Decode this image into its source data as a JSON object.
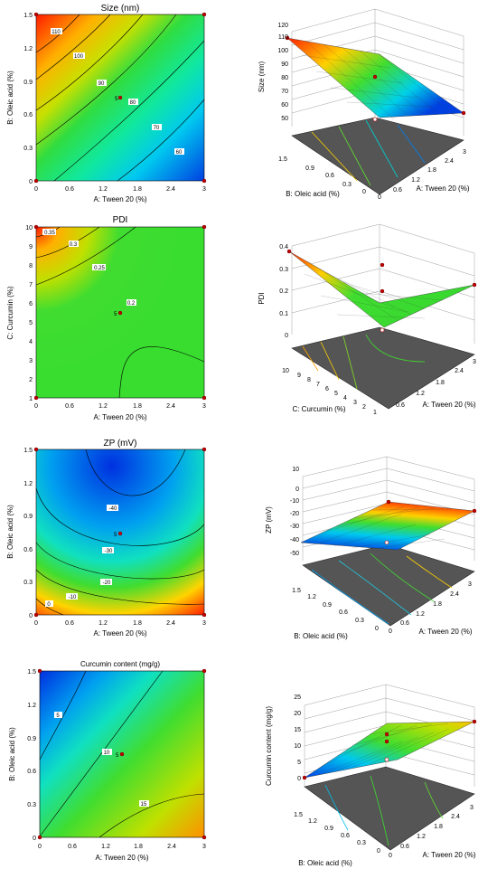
{
  "chart_data": [
    {
      "type": "contour",
      "title": "Size (nm)",
      "xlabel": "A: Tween 20 (%)",
      "ylabel": "B: Oleic acid (%)",
      "xticks": [
        "0",
        "0.6",
        "1.2",
        "1.8",
        "2.4",
        "3"
      ],
      "yticks": [
        "0",
        "0.3",
        "0.6",
        "0.9",
        "1.2",
        "1.5"
      ],
      "xlim": [
        0,
        3
      ],
      "ylim": [
        0,
        1.5
      ],
      "contour_labels": [
        "110",
        "100",
        "90",
        "80",
        "70",
        "60"
      ],
      "center_point_label": "5",
      "colors": [
        "#ff2000",
        "#ffd400",
        "#40dd30",
        "#00e0e8",
        "#0070f0"
      ]
    },
    {
      "type": "surface",
      "zlabel": "Size (nm)",
      "xlabel": "A: Tween 20 (%)",
      "ylabel": "B: Oleic acid (%)",
      "zticks": [
        "50",
        "60",
        "70",
        "80",
        "90",
        "100",
        "110",
        "120"
      ],
      "xticks": [
        "0",
        "0.6",
        "1.2",
        "1.8",
        "2.4",
        "3"
      ],
      "yticks": [
        "0",
        "0.3",
        "0.6",
        "0.9",
        "1.2",
        "1.5"
      ],
      "corners": {
        "x0y0": 90,
        "x3y0": 68,
        "x0y15": 112,
        "x3y15": 54
      }
    },
    {
      "type": "contour",
      "title": "PDI",
      "xlabel": "A: Tween 20 (%)",
      "ylabel": "C: Curcumin (%)",
      "xticks": [
        "0",
        "0.6",
        "1.2",
        "1.8",
        "2.4",
        "3"
      ],
      "yticks": [
        "1",
        "2",
        "3",
        "4",
        "5",
        "6",
        "7",
        "8",
        "9",
        "10"
      ],
      "xlim": [
        0,
        3
      ],
      "ylim": [
        1,
        10
      ],
      "contour_labels": [
        "0.35",
        "0.3",
        "0.25",
        "0.2"
      ],
      "center_point_label": "5",
      "colors": [
        "#ff2000",
        "#ffd400",
        "#40dd30"
      ]
    },
    {
      "type": "surface",
      "zlabel": "PDI",
      "xlabel": "A: Tween 20 (%)",
      "ylabel": "C: Curcumin (%)",
      "zticks": [
        "0",
        "0.1",
        "0.2",
        "0.3",
        "0.4"
      ],
      "xticks": [
        "0",
        "0.6",
        "1.2",
        "1.8",
        "2.4",
        "3"
      ],
      "yticks": [
        "1",
        "2",
        "3",
        "4",
        "5",
        "6",
        "7",
        "8",
        "9",
        "10"
      ],
      "corners": {
        "x0y1": 0.22,
        "x3y1": 0.21,
        "x0y10": 0.36,
        "x3y10": 0.21
      }
    },
    {
      "type": "contour",
      "title": "ZP (mV)",
      "xlabel": "A: Tween 20 (%)",
      "ylabel": "B: Oleic acid (%)",
      "xticks": [
        "0",
        "0.6",
        "1.2",
        "1.8",
        "2.4",
        "3"
      ],
      "yticks": [
        "0",
        "0.3",
        "0.6",
        "0.9",
        "1.2",
        "1.5"
      ],
      "xlim": [
        0,
        3
      ],
      "ylim": [
        0,
        1.5
      ],
      "contour_labels": [
        "-40",
        "-30",
        "-20",
        "-10",
        "0"
      ],
      "center_point_label": "5",
      "colors": [
        "#0040e8",
        "#00b8f0",
        "#20e0a0",
        "#50e030",
        "#ffd400",
        "#ff3000"
      ]
    },
    {
      "type": "surface",
      "zlabel": "ZP (mV)",
      "xlabel": "A: Tween 20 (%)",
      "ylabel": "B: Oleic acid (%)",
      "zticks": [
        "-50",
        "-40",
        "-30",
        "-20",
        "-10",
        "0",
        "10"
      ],
      "xticks": [
        "0",
        "0.6",
        "1.2",
        "1.8",
        "2.4",
        "3"
      ],
      "yticks": [
        "0",
        "0.3",
        "0.6",
        "0.9",
        "1.2",
        "1.5"
      ],
      "corners": {
        "x0y0": 2,
        "x3y0": -12,
        "x0y15": -43,
        "x3y15": -38
      }
    },
    {
      "type": "contour",
      "title": "Curcumin content (mg/g)",
      "xlabel": "A: Tween 20 (%)",
      "ylabel": "B: Oleic acid (%)",
      "xticks": [
        "0",
        "0.6",
        "1.2",
        "1.8",
        "2.4",
        "3"
      ],
      "yticks": [
        "0",
        "0.3",
        "0.6",
        "0.9",
        "1.2",
        "1.5"
      ],
      "xlim": [
        0,
        3
      ],
      "ylim": [
        0,
        1.5
      ],
      "contour_labels": [
        "5",
        "10",
        "15"
      ],
      "center_point_label": "5",
      "colors": [
        "#0040e8",
        "#00d0f0",
        "#40dd30",
        "#ffd400",
        "#ff8000"
      ]
    },
    {
      "type": "surface",
      "zlabel": "Curcumin content (mg/g)",
      "xlabel": "A: Tween 20 (%)",
      "ylabel": "B: Oleic acid (%)",
      "zticks": [
        "0",
        "5",
        "10",
        "15",
        "20",
        "25"
      ],
      "xticks": [
        "0",
        "0.6",
        "1.2",
        "1.8",
        "2.4",
        "3"
      ],
      "yticks": [
        "0",
        "0.3",
        "0.6",
        "0.9",
        "1.2",
        "1.5"
      ],
      "corners": {
        "x0y0": 10,
        "x3y0": 17,
        "x0y15": 2,
        "x3y15": 13
      }
    }
  ]
}
